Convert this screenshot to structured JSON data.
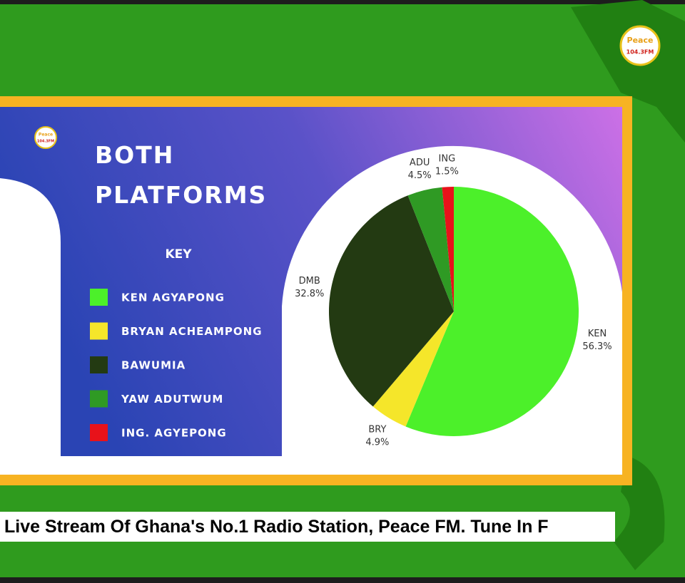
{
  "chart_data": {
    "type": "pie",
    "title": "BOTH PLATFORMS",
    "legend_title": "KEY",
    "categories": [
      "KEN",
      "BRY",
      "DMB",
      "ADU",
      "ING"
    ],
    "legend": [
      "KEN AGYAPONG",
      "BRYAN ACHEAMPONG",
      "BAWUMIA",
      "YAW ADUTWUM",
      "ING. AGYEPONG"
    ],
    "values": [
      56.3,
      4.9,
      32.8,
      4.5,
      1.5
    ],
    "value_labels": [
      "56.3%",
      "4.9%",
      "32.8%",
      "4.5%",
      "1.5%"
    ],
    "colors": [
      "#4cf02a",
      "#f5e62a",
      "#233a12",
      "#2f9a24",
      "#e8121a"
    ]
  },
  "logo": {
    "name": "Peace",
    "frequency": "104.3FM"
  },
  "ticker": "Live Stream Of Ghana's No.1 Radio Station, Peace FM. Tune In F"
}
